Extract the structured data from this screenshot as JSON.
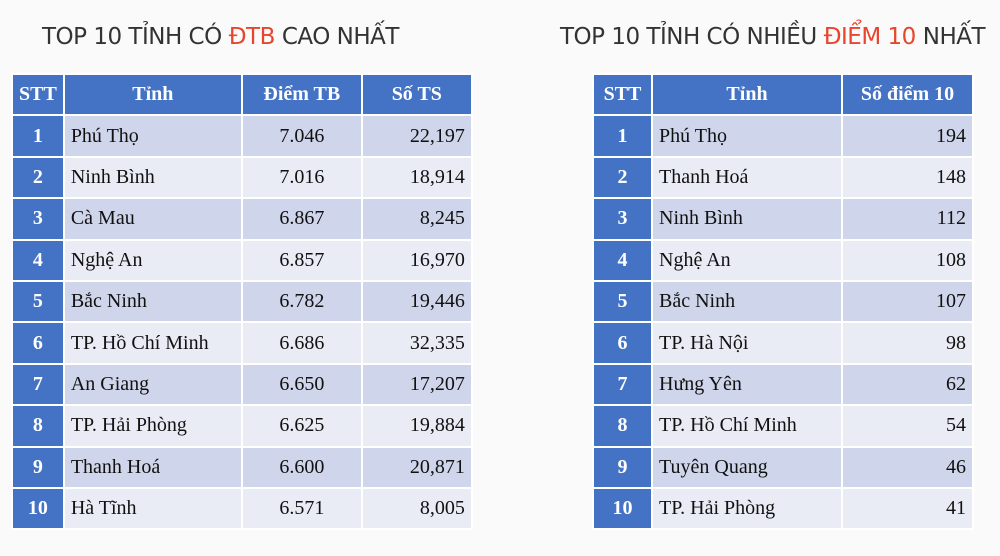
{
  "left": {
    "title": [
      "TOP 10 TỈNH CÓ",
      "ĐTB",
      "CAO NHẤT"
    ],
    "table": {
      "header": [
        "STT",
        "Tỉnh",
        "Điểm TB",
        "Số TS"
      ],
      "rows": [
        [
          "1",
          "Phú Thọ",
          "7.046",
          "22,197"
        ],
        [
          "2",
          "Ninh Bình",
          "7.016",
          "18,914"
        ],
        [
          "3",
          "Cà Mau",
          "6.867",
          "8,245"
        ],
        [
          "4",
          "Nghệ An",
          "6.857",
          "16,970"
        ],
        [
          "5",
          "Bắc Ninh",
          "6.782",
          "19,446"
        ],
        [
          "6",
          "TP. Hồ Chí Minh",
          "6.686",
          "32,335"
        ],
        [
          "7",
          "An Giang",
          "6.650",
          "17,207"
        ],
        [
          "8",
          "TP. Hải Phòng",
          "6.625",
          "19,884"
        ],
        [
          "9",
          "Thanh Hoá",
          "6.600",
          "20,871"
        ],
        [
          "10",
          "Hà Tĩnh",
          "6.571",
          "8,005"
        ]
      ]
    }
  },
  "right": {
    "title": [
      "TOP 10 TỈNH CÓ NHIỀU",
      "ĐIỂM 10",
      "NHẤT"
    ],
    "table": {
      "header": [
        "STT",
        "Tỉnh",
        "Số điểm 10"
      ],
      "rows": [
        [
          "1",
          "Phú Thọ",
          "194"
        ],
        [
          "2",
          "Thanh Hoá",
          "148"
        ],
        [
          "3",
          "Ninh Bình",
          "112"
        ],
        [
          "4",
          "Nghệ An",
          "108"
        ],
        [
          "5",
          "Bắc Ninh",
          "107"
        ],
        [
          "6",
          "TP. Hà Nội",
          "98"
        ],
        [
          "7",
          "Hưng Yên",
          "62"
        ],
        [
          "8",
          "TP. Hồ Chí Minh",
          "54"
        ],
        [
          "9",
          "Tuyên Quang",
          "46"
        ],
        [
          "10",
          "TP. Hải Phòng",
          "41"
        ]
      ]
    }
  }
}
